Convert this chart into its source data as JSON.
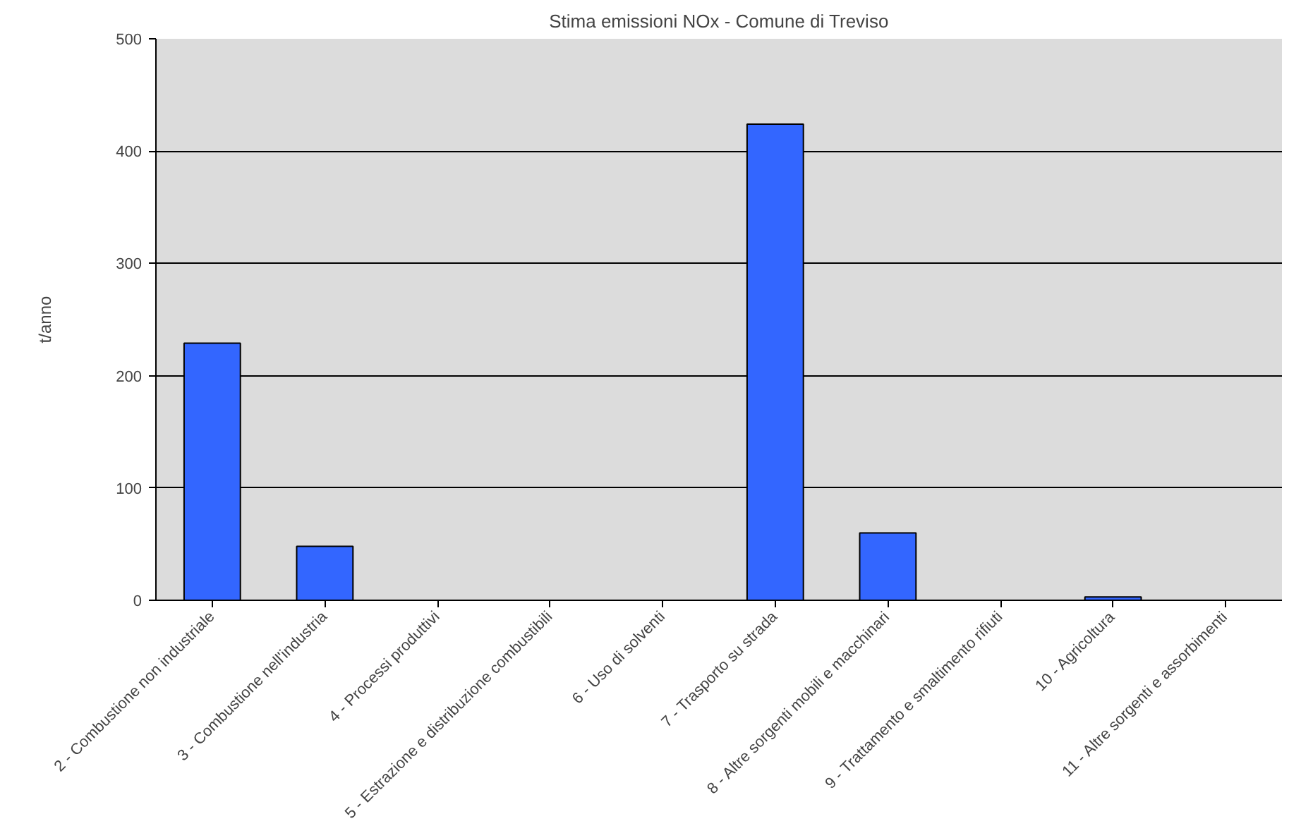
{
  "chart_data": {
    "type": "bar",
    "title": "Stima emissioni NOx - Comune di Treviso",
    "ylabel": "t/anno",
    "categories": [
      "2 - Combustione non industriale",
      "3 - Combustione nell'industria",
      "4 - Processi produttivi",
      "5 - Estrazione e distribuzione combustibili",
      "6 - Uso di solventi",
      "7 - Trasporto su strada",
      "8 - Altre sorgenti mobili e macchinari",
      "9 - Trattamento e smaltimento rifiuti",
      "10 - Agricoltura",
      "11 - Altre sorgenti e assorbimenti"
    ],
    "values": [
      229,
      48,
      0,
      0,
      0,
      424,
      60,
      0,
      3,
      0
    ],
    "color": "#3366ff",
    "ylim": [
      0,
      500
    ],
    "yticks": [
      0,
      100,
      200,
      300,
      400,
      500
    ],
    "grid": "y"
  }
}
